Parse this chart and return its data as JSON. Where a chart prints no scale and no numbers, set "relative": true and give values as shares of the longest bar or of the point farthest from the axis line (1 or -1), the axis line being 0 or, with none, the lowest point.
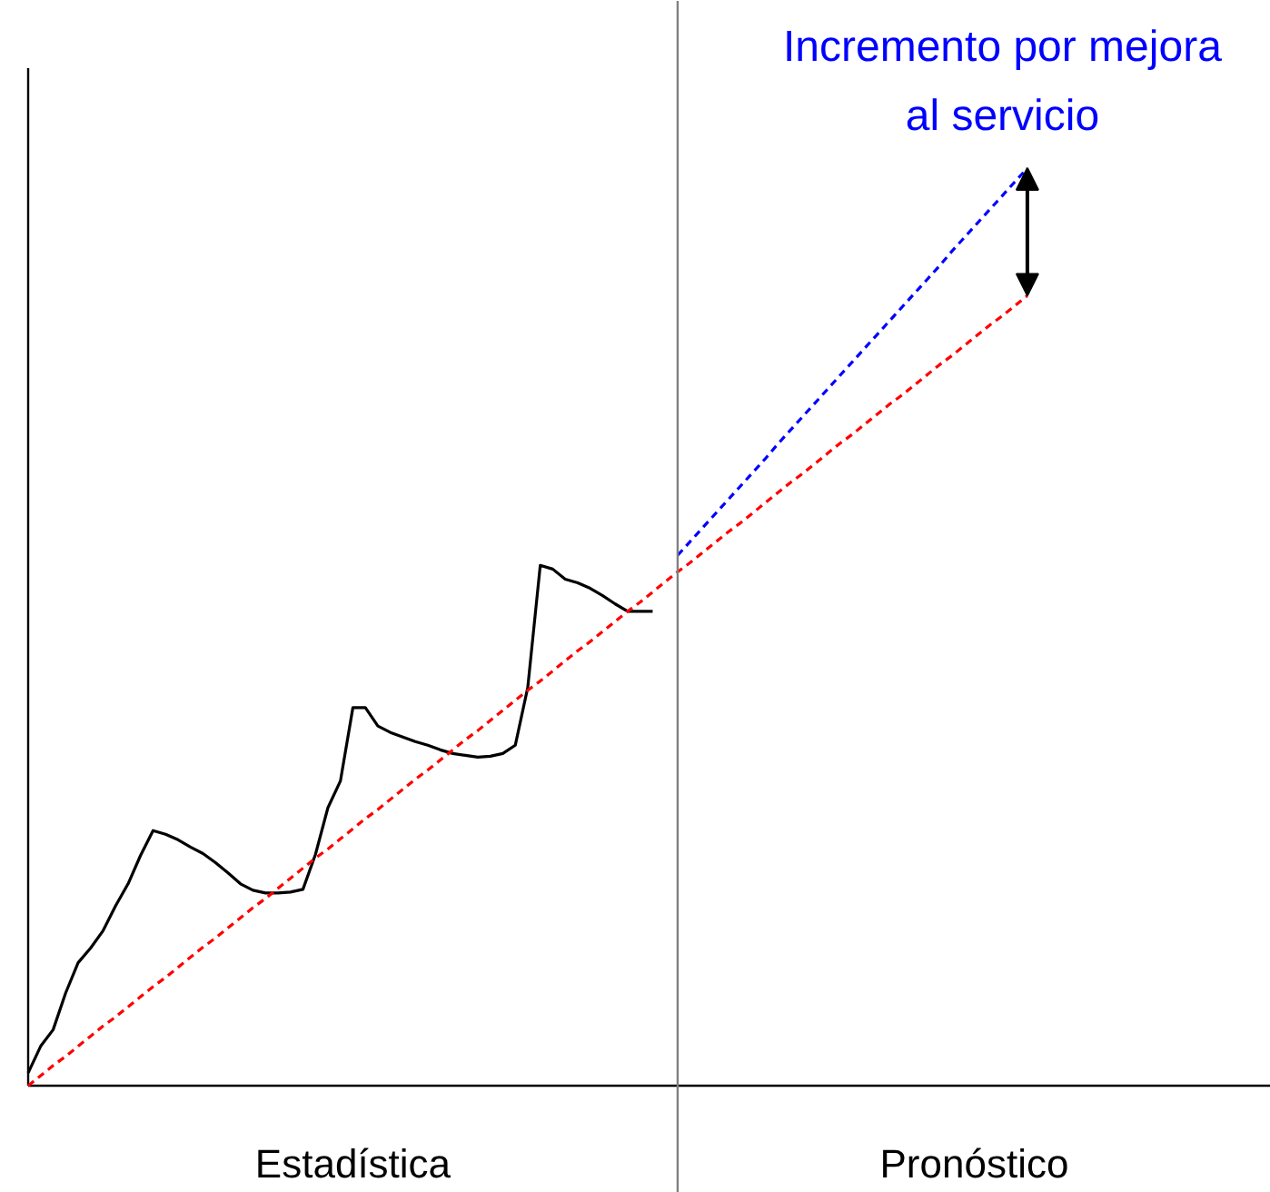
{
  "chart_data": {
    "type": "line",
    "relative": true,
    "grid": false,
    "categories": [
      null,
      null,
      null,
      null,
      null,
      null,
      null,
      null,
      null,
      null,
      null,
      null,
      null,
      null,
      null,
      null,
      null,
      null,
      null,
      null,
      null,
      null,
      null,
      null,
      null,
      null,
      null,
      null,
      null,
      null,
      null,
      null,
      null,
      null,
      null,
      null,
      null,
      null,
      null,
      null,
      null,
      null,
      null,
      null,
      null,
      null,
      null,
      null,
      null,
      null,
      null,
      null,
      null,
      null,
      null,
      null,
      null,
      null,
      null,
      null,
      null,
      null,
      null,
      null,
      null,
      null,
      null,
      null,
      null,
      null,
      null,
      null,
      null,
      null,
      null,
      null,
      null,
      null,
      null,
      null,
      null,
      null,
      null,
      null,
      null,
      null,
      null,
      null,
      null,
      null,
      null,
      null,
      null,
      null,
      null,
      null,
      null,
      null,
      null,
      null
    ],
    "annotations": [
      "Incremento por mejora al servicio",
      "Estadística",
      "Pronóstico"
    ],
    "series": [
      {
        "color": "#000000",
        "line_style": "solid",
        "values": [
          0.014,
          0.043,
          0.061,
          0.101,
          0.134,
          0.15,
          0.169,
          0.196,
          0.22,
          0.251,
          0.278,
          0.274,
          0.268,
          0.26,
          0.253,
          0.243,
          0.232,
          0.22,
          0.213,
          0.21,
          0.21,
          0.211,
          0.214,
          0.252,
          0.303,
          0.332,
          0.412,
          0.412,
          0.392,
          0.385,
          0.38,
          0.375,
          0.371,
          0.366,
          0.362,
          0.36,
          0.358,
          0.359,
          0.362,
          0.371,
          0.434,
          0.567,
          0.563,
          0.552,
          0.548,
          0.542,
          0.534,
          0.525,
          0.517,
          0.517,
          0.517,
          null,
          null,
          null,
          null,
          null,
          null,
          null,
          null,
          null,
          null,
          null,
          null,
          null,
          null,
          null,
          null,
          null,
          null,
          null,
          null,
          null,
          null,
          null,
          null,
          null,
          null,
          null,
          null,
          null,
          null,
          null,
          null,
          null,
          null,
          null,
          null,
          null,
          null,
          null,
          null,
          null,
          null,
          null,
          null,
          null,
          null,
          null,
          null,
          null
        ]
      },
      {
        "color": "#ff0000",
        "line_style": "dashed",
        "values": [
          0,
          0.011,
          0.022,
          0.032,
          0.043,
          0.054,
          0.065,
          0.075,
          0.086,
          0.097,
          0.108,
          0.118,
          0.129,
          0.14,
          0.151,
          0.161,
          0.172,
          0.183,
          0.194,
          0.204,
          0.215,
          0.226,
          0.237,
          0.248,
          0.258,
          0.269,
          0.28,
          0.291,
          0.301,
          0.312,
          0.323,
          0.334,
          0.344,
          0.355,
          0.366,
          0.377,
          0.387,
          0.398,
          0.409,
          0.42,
          0.431,
          0.441,
          0.452,
          0.463,
          0.474,
          0.484,
          0.495,
          0.506,
          0.517,
          0.527,
          0.538,
          0.549,
          0.56,
          0.57,
          0.581,
          0.592,
          0.603,
          0.613,
          0.624,
          0.635,
          0.646,
          0.657,
          0.667,
          0.678,
          0.689,
          0.7,
          0.71,
          0.721,
          0.732,
          0.743,
          0.753,
          0.764,
          0.775,
          0.786,
          0.796,
          0.807,
          0.818,
          0.829,
          0.839,
          0.85,
          0.861,
          null,
          null,
          null,
          null,
          null,
          null,
          null,
          null,
          null,
          null,
          null,
          null,
          null,
          null,
          null,
          null,
          null,
          null,
          null
        ]
      },
      {
        "color": "#0000ff",
        "line_style": "dashed",
        "values": [
          null,
          null,
          null,
          null,
          null,
          null,
          null,
          null,
          null,
          null,
          null,
          null,
          null,
          null,
          null,
          null,
          null,
          null,
          null,
          null,
          null,
          null,
          null,
          null,
          null,
          null,
          null,
          null,
          null,
          null,
          null,
          null,
          null,
          null,
          null,
          null,
          null,
          null,
          null,
          null,
          null,
          null,
          null,
          null,
          null,
          null,
          null,
          null,
          null,
          null,
          null,
          null,
          0.578,
          0.593,
          0.608,
          0.623,
          0.638,
          0.653,
          0.668,
          0.683,
          0.699,
          0.714,
          0.729,
          0.744,
          0.759,
          0.774,
          0.789,
          0.804,
          0.819,
          0.834,
          0.849,
          0.864,
          0.879,
          0.894,
          0.91,
          0.925,
          0.94,
          0.955,
          0.97,
          0.985,
          1,
          null,
          null,
          null,
          null,
          null,
          null,
          null,
          null,
          null,
          null,
          null,
          null,
          null,
          null,
          null,
          null,
          null,
          null,
          null
        ]
      }
    ]
  }
}
